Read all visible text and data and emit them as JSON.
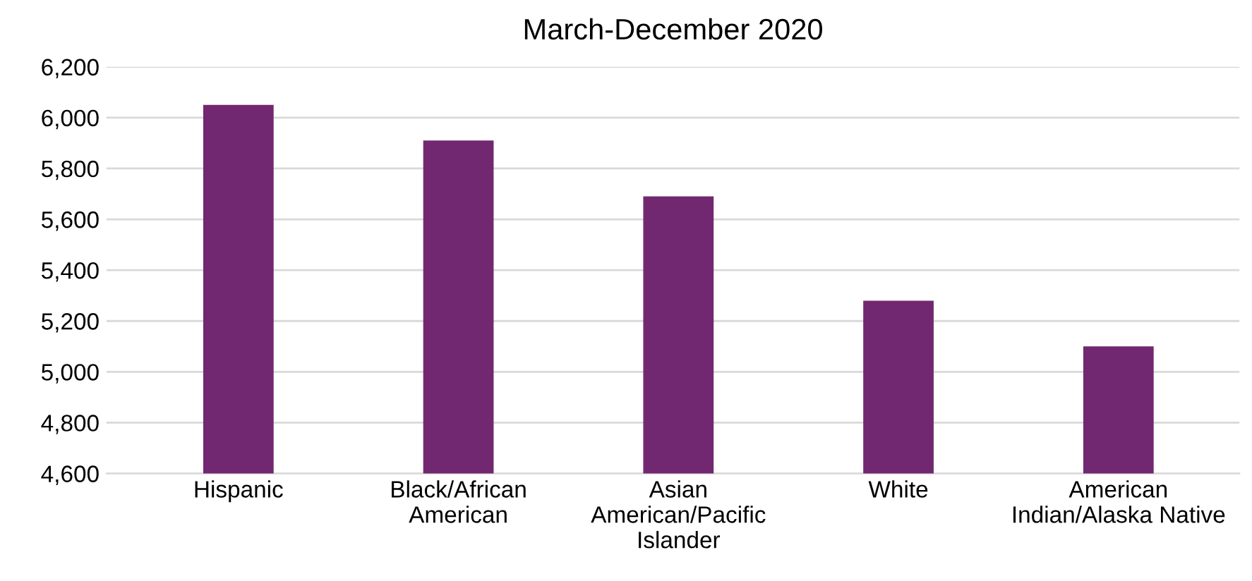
{
  "chart_data": {
    "type": "bar",
    "title": "March-December 2020",
    "categories": [
      "Hispanic",
      "Black/African\nAmerican",
      "Asian\nAmerican/Pacific\nIslander",
      "White",
      "American\nIndian/Alaska Native"
    ],
    "values": [
      6050,
      5910,
      5690,
      5280,
      5100
    ],
    "color": "#722870",
    "ylim": [
      4600,
      6200
    ],
    "yticks": [
      {
        "value": 4600,
        "label": "4,600"
      },
      {
        "value": 4800,
        "label": "4,800"
      },
      {
        "value": 5000,
        "label": "5,000"
      },
      {
        "value": 5200,
        "label": "5,200"
      },
      {
        "value": 5400,
        "label": "5,400"
      },
      {
        "value": 5600,
        "label": "5,600"
      },
      {
        "value": 5800,
        "label": "5,800"
      },
      {
        "value": 6000,
        "label": "6,000"
      },
      {
        "value": 6200,
        "label": "6,200"
      }
    ],
    "grid": "y"
  }
}
